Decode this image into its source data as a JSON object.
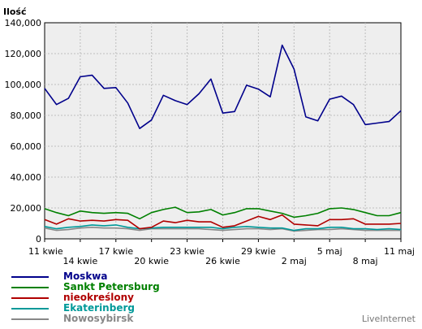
{
  "chart_data": {
    "type": "line",
    "ylabel": "Ilość",
    "ylim": [
      0,
      140000
    ],
    "yticks": [
      "0",
      "20,000",
      "40,000",
      "60,000",
      "80,000",
      "100,000",
      "120,000",
      "140,000"
    ],
    "ytick_values": [
      0,
      20000,
      40000,
      60000,
      80000,
      100000,
      120000,
      140000
    ],
    "x": [
      "11 kwie",
      "12 kwie",
      "13 kwie",
      "14 kwie",
      "15 kwie",
      "16 kwie",
      "17 kwie",
      "18 kwie",
      "19 kwie",
      "20 kwie",
      "21 kwie",
      "22 kwie",
      "23 kwie",
      "24 kwie",
      "25 kwie",
      "26 kwie",
      "27 kwie",
      "28 kwie",
      "29 kwie",
      "30 kwie",
      "1 maj",
      "2 maj",
      "3 maj",
      "4 maj",
      "5 maj",
      "6 maj",
      "7 maj",
      "8 maj",
      "9 maj",
      "10 maj",
      "11 maj"
    ],
    "xticks": [
      {
        "index": 0,
        "label": "11 kwie",
        "row": 0
      },
      {
        "index": 3,
        "label": "14 kwie",
        "row": 1
      },
      {
        "index": 6,
        "label": "17 kwie",
        "row": 0
      },
      {
        "index": 9,
        "label": "20 kwie",
        "row": 1
      },
      {
        "index": 12,
        "label": "23 kwie",
        "row": 0
      },
      {
        "index": 15,
        "label": "26 kwie",
        "row": 1
      },
      {
        "index": 18,
        "label": "29 kwie",
        "row": 0
      },
      {
        "index": 21,
        "label": "2 maj",
        "row": 1
      },
      {
        "index": 24,
        "label": "5 maj",
        "row": 0
      },
      {
        "index": 27,
        "label": "8 maj",
        "row": 1
      },
      {
        "index": 30,
        "label": "11 maj",
        "row": 0
      }
    ],
    "grid": true,
    "series": [
      {
        "name": "Moskwa",
        "color": "#00008b",
        "values": [
          97500,
          87000,
          91000,
          105000,
          106000,
          97500,
          98000,
          88000,
          71500,
          77000,
          93000,
          89500,
          87000,
          94000,
          103500,
          81500,
          82500,
          99500,
          97000,
          92000,
          125500,
          110000,
          79000,
          76500,
          90500,
          92500,
          87000,
          74000,
          75000,
          76000,
          83000
        ]
      },
      {
        "name": "Sankt Petersburg",
        "color": "#008000",
        "values": [
          19500,
          17000,
          15000,
          18000,
          17000,
          16500,
          17000,
          16500,
          13000,
          17000,
          19000,
          20500,
          17000,
          17500,
          19000,
          15500,
          17000,
          19500,
          19500,
          18000,
          16500,
          14000,
          15000,
          16500,
          19500,
          20000,
          19000,
          17000,
          15000,
          15000,
          17000
        ]
      },
      {
        "name": "nieokreślony",
        "color": "#b00000",
        "values": [
          12500,
          9500,
          13000,
          11500,
          12000,
          11500,
          12500,
          12000,
          6500,
          7500,
          11500,
          10500,
          12000,
          11000,
          11000,
          7500,
          8500,
          11500,
          14500,
          12500,
          15500,
          9500,
          9000,
          8500,
          12500,
          12500,
          13000,
          9500,
          9500,
          9500,
          10000
        ]
      },
      {
        "name": "Ekaterinberg",
        "color": "#009999",
        "values": [
          8000,
          6500,
          7500,
          8000,
          9000,
          8500,
          9000,
          7500,
          6500,
          7000,
          7500,
          7500,
          7500,
          7500,
          7500,
          6500,
          7500,
          8000,
          7500,
          7000,
          7000,
          5500,
          6500,
          6500,
          7500,
          7500,
          6500,
          6500,
          6000,
          6500,
          6000
        ]
      },
      {
        "name": "Nowosybirsk",
        "color": "#888888",
        "values": [
          7000,
          5500,
          6000,
          7000,
          7500,
          7000,
          7000,
          6500,
          5500,
          6500,
          6500,
          6500,
          6500,
          6500,
          6000,
          5500,
          6000,
          6500,
          6500,
          6000,
          6500,
          5000,
          5500,
          6000,
          6000,
          6500,
          6000,
          5500,
          5500,
          5500,
          5500
        ]
      }
    ]
  },
  "brand": "LiveInternet"
}
